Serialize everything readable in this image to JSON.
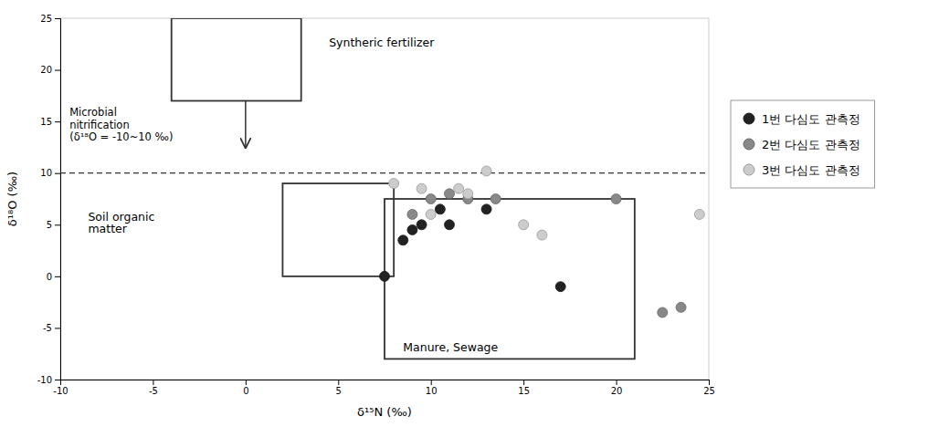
{
  "chart_data": {
    "type": "scatter",
    "xlabel": "δ¹⁵N (‰)",
    "ylabel": "δ¹⁸O (‰)",
    "xlim": [
      -10,
      25
    ],
    "ylim": [
      -10,
      25
    ],
    "xticks": [
      -10,
      -5,
      0,
      5,
      10,
      15,
      20,
      25
    ],
    "yticks": [
      -10,
      -5,
      0,
      5,
      10,
      15,
      20,
      25
    ],
    "grid": false,
    "legend": "right",
    "hline": 10,
    "boxes": [
      {
        "x": -4,
        "y": 17,
        "width": 7,
        "height": 8,
        "label": "Syntheric fertilizer",
        "label_x": 4.5,
        "label_y": 22
      },
      {
        "x": 2,
        "y": 0,
        "width": 6,
        "height": 9,
        "label": "Soil organic\nmatter",
        "label_x": -8.5,
        "label_y": 4
      },
      {
        "x": 7.5,
        "y": -8,
        "width": 13.5,
        "height": 15.5,
        "label": "Manure, Sewage",
        "label_x": 8.5,
        "label_y": -7.5
      }
    ],
    "arrow": {
      "x": 0,
      "y_start": 17,
      "y_end": 12.5
    },
    "annotations": [
      {
        "text": "Microbial\nnitrification\n(δ¹⁸O = -10~10 ‰)",
        "x": -9.5,
        "y": 16.5
      }
    ],
    "series": [
      {
        "name": "1번 다심도 관측정",
        "color": "#222222",
        "x": [
          7.5,
          8.5,
          9.0,
          9.5,
          10.5,
          11.0,
          13.0,
          17.0
        ],
        "values": [
          0.0,
          3.5,
          4.5,
          5.0,
          6.5,
          5.0,
          6.5,
          -1.0
        ]
      },
      {
        "name": "2번 다심도 관측정",
        "color": "#888888",
        "x": [
          9.0,
          10.0,
          11.0,
          12.0,
          13.5,
          20.0,
          22.5,
          23.5
        ],
        "values": [
          6.0,
          7.5,
          8.0,
          7.5,
          7.5,
          7.5,
          -3.5,
          -3.0
        ]
      },
      {
        "name": "3번 다심도 관측정",
        "color": "#cccccc",
        "x": [
          8.0,
          9.5,
          10.0,
          11.5,
          12.0,
          13.0,
          15.0,
          16.0,
          24.5
        ],
        "values": [
          9.0,
          8.5,
          6.0,
          8.5,
          8.0,
          10.2,
          5.0,
          4.0,
          6.0
        ]
      }
    ]
  }
}
